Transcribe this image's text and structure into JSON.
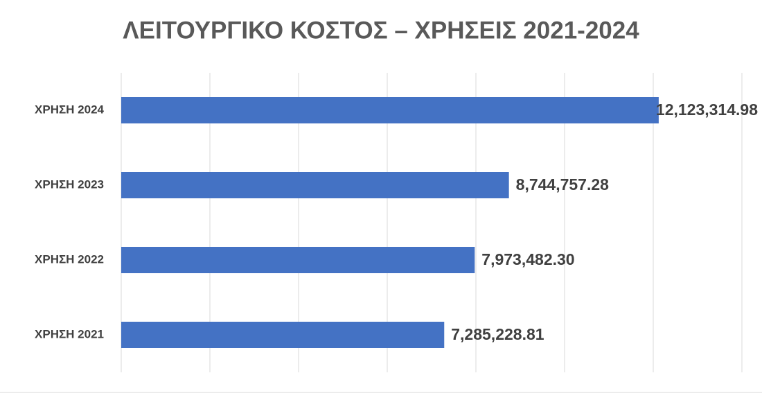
{
  "chart_data": {
    "type": "hbar",
    "title": "ΛΕΙΤΟΥΡΓΙΚΟ ΚΟΣΤΟΣ – ΧΡΗΣΕΙΣ 2021-2024",
    "categories": [
      "ΧΡΗΣΗ 2021",
      "ΧΡΗΣΗ 2022",
      "ΧΡΗΣΗ 2023",
      "ΧΡΗΣΗ 2024"
    ],
    "values": [
      7285228.81,
      7973482.3,
      8744757.28,
      12123314.98
    ],
    "value_labels": [
      "7,285,228.81",
      "7,973,482.30",
      "8,744,757.28",
      "12,123,314.98"
    ],
    "color": "#4472c4",
    "xlim": [
      0,
      14000000
    ],
    "xticks": [
      0,
      2000000,
      4000000,
      6000000,
      8000000,
      10000000,
      12000000,
      14000000
    ],
    "grid": true
  }
}
